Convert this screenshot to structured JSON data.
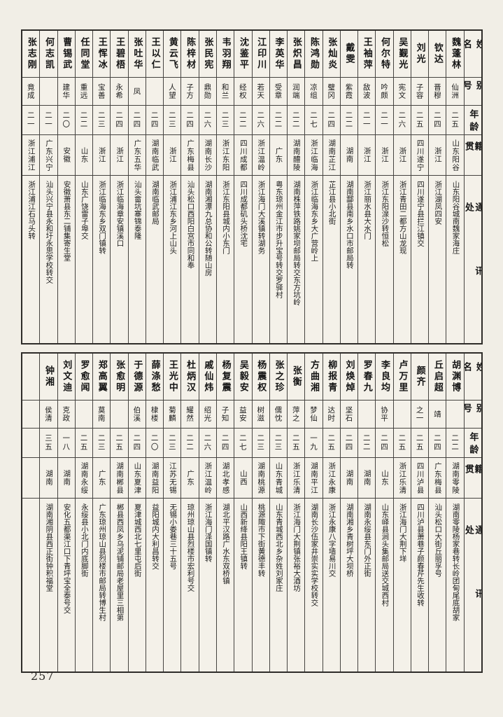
{
  "page_number": "257",
  "column_headers": {
    "name": "姓名",
    "alias": "别号",
    "age": "年龄",
    "native": "籍贯",
    "address": "通讯处"
  },
  "tables": [
    {
      "entries": [
        {
          "name": "魏蓬林",
          "alias": "仙洲",
          "age": "二五",
          "native": "山东阳谷",
          "address": "山东阳谷城南魏家海庄"
        },
        {
          "name": "钦达",
          "alias": "晋穆",
          "age": "二四",
          "native": "浙江",
          "address": "浙江湖凤四安"
        },
        {
          "name": "刘光",
          "alias": "子容",
          "age": "二五",
          "native": "四川遂宁",
          "address": "四川遂宁县拦江镇交"
        },
        {
          "name": "吴觐光",
          "alias": "宪文",
          "age": "二六",
          "native": "浙江",
          "address": "浙江青田二都方山龙现"
        },
        {
          "name": "何尔特",
          "alias": "吟颇",
          "age": "二一",
          "native": "浙江",
          "address": "浙江东阳湶沙转恒松"
        },
        {
          "name": "王袖萍",
          "alias": "敌波",
          "age": "二一",
          "native": "浙江",
          "address": "浙江丽水县大水门"
        },
        {
          "name": "戴雯",
          "alias": "紫霞",
          "age": "二二",
          "native": "湖南",
          "address": "湖南酃县南乡水口市邮局转"
        },
        {
          "name": "张灿炎",
          "alias": "璧冈",
          "age": "二四",
          "native": "湖南芷江",
          "address": "芷江县小北街"
        },
        {
          "name": "陈鸿勋",
          "alias": "凉组",
          "age": "二七",
          "native": "浙江临海",
          "address": "浙江临海东乡大广营岭上"
        },
        {
          "name": "张炽昌",
          "alias": "润端",
          "age": "二二",
          "native": "湖南醴陵",
          "address": "湖南株萍铁路姚家坝邮局转交东方坑岭"
        },
        {
          "name": "李英华",
          "alias": "受章",
          "age": "二二",
          "native": "广东",
          "address": "粤东琼州金江市步升宝号转交罗驿村"
        },
        {
          "name": "江印川",
          "alias": "若天",
          "age": "二六",
          "native": "浙江温岭",
          "address": "浙江海门大溪镇转湖务"
        },
        {
          "name": "沈鉴平",
          "alias": "经权",
          "age": "二二",
          "native": "四川成都",
          "address": "四川成都矶头桥沈宅"
        },
        {
          "name": "韦羽翔",
          "alias": "和兰",
          "age": "二三",
          "native": "浙江东阳",
          "address": "浙江东阳县城内小东门"
        },
        {
          "name": "张民宪",
          "alias": "鼎勋",
          "age": "二六",
          "native": "湖南长沙",
          "address": "湖南湘潭九总协和公转随山房"
        },
        {
          "name": "陈梓材",
          "alias": "子方",
          "age": "二四",
          "native": "广东梅县",
          "address": "汕头松口西阳白宫市同和奉"
        },
        {
          "name": "黄云飞",
          "alias": "人望",
          "age": "二三",
          "native": "浙江",
          "address": "浙江浦江东乡河上山头"
        },
        {
          "name": "王以仁",
          "alias": "",
          "age": "二四",
          "native": "湖南临武",
          "address": "湖南临武邮局"
        },
        {
          "name": "张吐华",
          "alias": "凤",
          "age": "二四",
          "native": "广东五华",
          "address": "汕头畲坑寨锦泰隆"
        },
        {
          "name": "王碧梧",
          "alias": "永希",
          "age": "二四",
          "native": "浙江",
          "address": "浙江临海章安镇溪口"
        },
        {
          "name": "王恽冰",
          "alias": "宝善",
          "age": "二三",
          "native": "浙江",
          "address": "浙江临海东乡双门镇转"
        },
        {
          "name": "任同堂",
          "alias": "重远",
          "age": "二二",
          "native": "山东",
          "address": "山东广饶雷子埠交"
        },
        {
          "name": "曹锡武",
          "alias": "建华",
          "age": "二〇",
          "native": "安徽",
          "address": "安徽萧县东二铺集寄生堂"
        },
        {
          "name": "何志凯",
          "alias": "",
          "age": "二一",
          "native": "广东兴宁",
          "address": "汕头兴宁县永和圩永思学校转交"
        },
        {
          "name": "张志刚",
          "alias": "竟成",
          "age": "二一",
          "native": "浙江浦江",
          "address": "浙江浦江石马头转"
        }
      ]
    },
    {
      "entries": [
        {
          "name": "胡渊博",
          "alias": "",
          "age": "二二",
          "native": "湖南零陵",
          "address": "湖南零陵杨家巷转长岭团甸尾底胡家"
        },
        {
          "name": "丘启超",
          "alias": "靖",
          "age": "二四",
          "native": "广东梅县",
          "address": "汕头松口大街丘丽孚号"
        },
        {
          "name": "颜齐",
          "alias": "之一",
          "age": "二五",
          "native": "四川泸县",
          "address": "四川泸县萧巷子颜春芹先生收转"
        },
        {
          "name": "卢万里",
          "alias": "",
          "age": "二五",
          "native": "浙江乐清",
          "address": "浙江海门大荆下垟"
        },
        {
          "name": "李良均",
          "alias": "协平",
          "age": "二四",
          "native": "山东",
          "address": "山东峄县涧头集邮局送交城西村"
        },
        {
          "name": "罗春九",
          "alias": "",
          "age": "二二",
          "native": "湖南",
          "address": "湖南永绥县东门外正街"
        },
        {
          "name": "刘焕焯",
          "alias": "坚石",
          "age": "二四",
          "native": "湖南",
          "address": "湖南湘乡青树坪大坝桥"
        },
        {
          "name": "柳报青",
          "alias": "达时",
          "age": "二五",
          "native": "浙江永康",
          "address": "浙江永康八字墙易川交"
        },
        {
          "name": "方曲湘",
          "alias": "梦仙",
          "age": "一九",
          "native": "湖南平江",
          "address": "湖南长沙伍家井崇实实学校转交"
        },
        {
          "name": "张衡",
          "alias": "萍之",
          "age": "二五",
          "native": "浙江乐清",
          "address": "浙江海门大荆镇张裕大酒坊"
        },
        {
          "name": "张之珍",
          "alias": "儒忱",
          "age": "二三",
          "native": "山东青城",
          "address": "山东青城西北乡杂姓刘家庄"
        },
        {
          "name": "杨震权",
          "alias": "树滋",
          "age": "二三",
          "native": "湖南桃源",
          "address": "桃源陬市下街黄德丰转"
        },
        {
          "name": "吴毅安",
          "alias": "益安",
          "age": "二七",
          "native": "山西",
          "address": "山西新绛县阳王镇转"
        },
        {
          "name": "杨复震",
          "alias": "子知",
          "age": "二四",
          "native": "湖北孝感",
          "address": "湖北平汉路广水东双桥镇"
        },
        {
          "name": "戚仙炜",
          "alias": "绍光",
          "age": "二六",
          "native": "浙江温岭",
          "address": "浙江海门泽国镇转"
        },
        {
          "name": "杜炳汉",
          "alias": "耀然",
          "age": "二二",
          "native": "广东",
          "address": "琼州琼山县烈楼市宏利号交"
        },
        {
          "name": "王光中",
          "alias": "菊麟",
          "age": "二三",
          "native": "江苏无锡",
          "address": "无锡小娄巷三十五号"
        },
        {
          "name": "薛涤愁",
          "alias": "棣楼",
          "age": "二〇",
          "native": "湖南益阳",
          "address": "益阳城内大利昌转交"
        },
        {
          "name": "于德源",
          "alias": "伯溪",
          "age": "二四",
          "native": "山东夏津",
          "address": "夏津城西北七里屯后街"
        },
        {
          "name": "张愈明",
          "alias": "",
          "age": "二五",
          "native": "湖南郴县",
          "address": "郴县西凤乡乌泥铺邮局老屋里三相第"
        },
        {
          "name": "郑高翼",
          "alias": "莫南",
          "age": "二三",
          "native": "广东",
          "address": "广东琼州琼山县烈楼市邮局转博生村"
        },
        {
          "name": "罗愈闻",
          "alias": "",
          "age": "二五",
          "native": "湖南永绥",
          "address": "永绥县小北门内底脚街"
        },
        {
          "name": "刘文迪",
          "alias": "克政",
          "age": "一八",
          "native": "湖南",
          "address": "安化五都渠江口下青坪宝全泰号交"
        },
        {
          "name": "钟湘",
          "alias": "侯清",
          "age": "三五",
          "native": "湖南",
          "address": "湖南湘阴县西正街钟积福堂"
        },
        {
          "name": "",
          "alias": "",
          "age": "",
          "native": "",
          "address": ""
        }
      ]
    }
  ]
}
